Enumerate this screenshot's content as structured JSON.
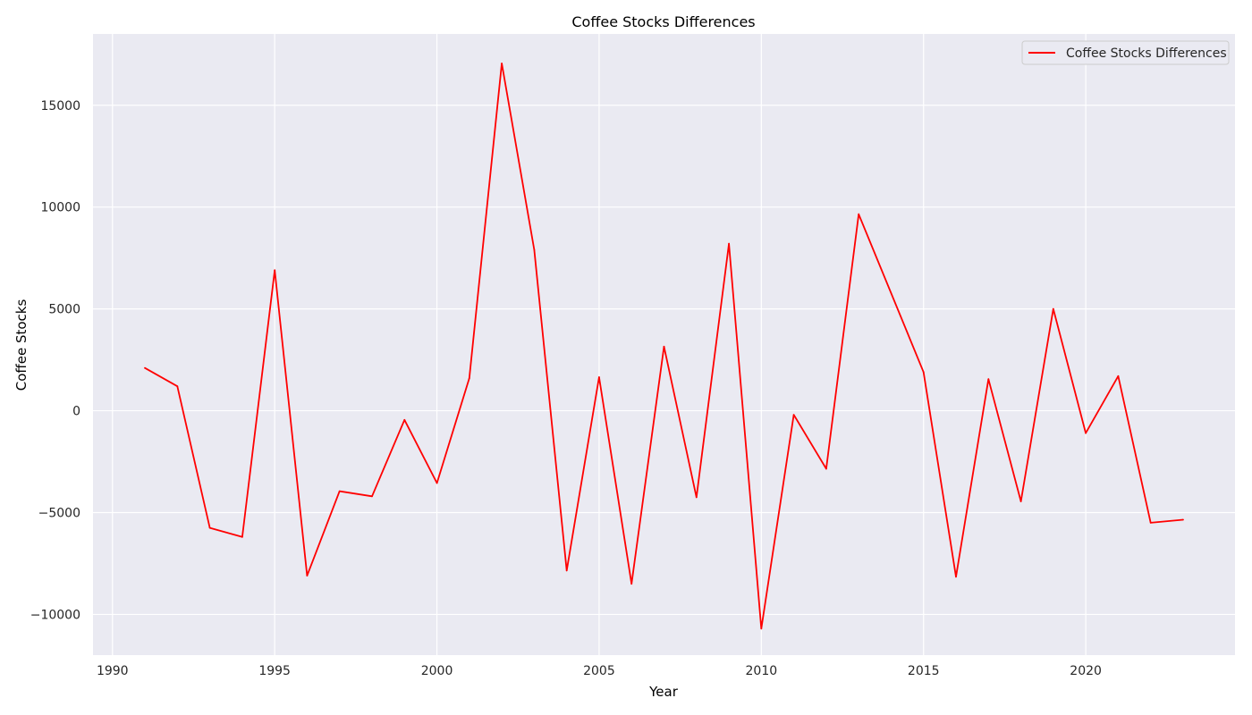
{
  "chart_data": {
    "type": "line",
    "title": "Coffee Stocks Differences",
    "xlabel": "Year",
    "ylabel": "Coffee Stocks",
    "xlim": [
      1989.4,
      2024.6
    ],
    "ylim": [
      -12000,
      18500
    ],
    "xticks": [
      1990,
      1995,
      2000,
      2005,
      2010,
      2015,
      2020
    ],
    "yticks": [
      -10000,
      -5000,
      0,
      5000,
      10000,
      15000
    ],
    "grid": true,
    "legend": {
      "position": "top-right",
      "entries": [
        "Coffee Stocks Differences"
      ]
    },
    "colors": {
      "line": "#ff0000",
      "plot_background": "#eaeaf2",
      "grid": "#ffffff"
    },
    "series": [
      {
        "name": "Coffee Stocks Differences",
        "x": [
          1991,
          1992,
          1993,
          1994,
          1995,
          1996,
          1997,
          1998,
          1999,
          2000,
          2001,
          2002,
          2003,
          2004,
          2005,
          2006,
          2007,
          2008,
          2009,
          2010,
          2011,
          2012,
          2013,
          2015,
          2016,
          2017,
          2018,
          2019,
          2020,
          2021,
          2022,
          2023
        ],
        "values": [
          2100,
          1200,
          -5750,
          -6200,
          6900,
          -8100,
          -3950,
          -4200,
          -450,
          -3550,
          1600,
          17050,
          7900,
          -7850,
          1650,
          -8500,
          3150,
          -4250,
          8200,
          -10700,
          -200,
          -2850,
          9650,
          1900,
          -8150,
          1550,
          -4450,
          5000,
          -1100,
          1700,
          -5500,
          -5350
        ]
      }
    ]
  }
}
